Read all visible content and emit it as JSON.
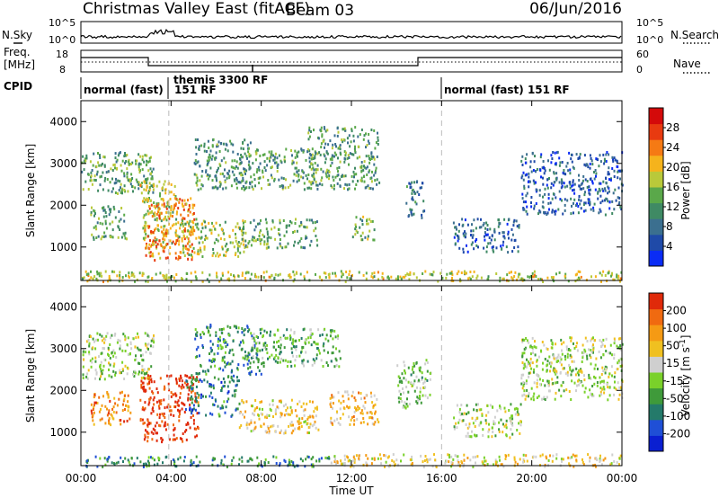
{
  "header": {
    "radar": "Christmas Valley East (fitACF)",
    "beam": "Beam 03",
    "date": "06/Jun/2016"
  },
  "summary_panels": {
    "nsky": {
      "label": "N.Sky",
      "ticks": [
        "10^5",
        "10^0"
      ]
    },
    "nsearch": {
      "label": "N.Search",
      "ticks": [
        "10^5",
        "10^0"
      ]
    },
    "freq": {
      "label_line1": "Freq.",
      "label_line2": "[MHz]",
      "ticks": [
        "18",
        "8"
      ]
    },
    "nave": {
      "label": "Nave",
      "ticks": [
        "60",
        "0"
      ]
    },
    "cpid": {
      "label": "CPID",
      "segments": [
        {
          "name": "normal (fast) 151 RF",
          "start_h": 0,
          "end_h": 3.9,
          "text_a": "normal (fast) ",
          "text_b": "151 RF"
        },
        {
          "name": "themis 3300 RF",
          "start_h": 3.9,
          "end_h": 16.0,
          "text": "themis 3300 RF"
        },
        {
          "name": "normal (fast) 151 RF",
          "start_h": 16.0,
          "end_h": 24.0,
          "text": "normal (fast) 151 RF"
        }
      ]
    }
  },
  "chart_data": [
    {
      "type": "heatmap",
      "title": "",
      "quantity": "Power",
      "ylabel": "Slant Range [km]",
      "xlabel": "",
      "xlim": [
        0,
        24
      ],
      "ylim": [
        200,
        4500
      ],
      "yticks": [
        "1000",
        "2000",
        "3000",
        "4000"
      ],
      "colorbar": {
        "label": "Power [dB]",
        "min": 0,
        "max": 32,
        "ticks": [
          "4",
          "8",
          "12",
          "16",
          "20",
          "24",
          "28"
        ],
        "colors": [
          "#0a2cf5",
          "#1f4aa8",
          "#3b6f8f",
          "#3f8a64",
          "#5aa84a",
          "#b9c93a",
          "#f5b31c",
          "#f57a14",
          "#e83a10",
          "#d40a0a"
        ]
      },
      "regions": [
        {
          "t0": 0.0,
          "t1": 3.2,
          "r0": 2300,
          "r1": 3300,
          "level": 0.42
        },
        {
          "t0": 0.4,
          "t1": 2.0,
          "r0": 1200,
          "r1": 2000,
          "level": 0.4
        },
        {
          "t0": 2.6,
          "t1": 4.2,
          "r0": 1000,
          "r1": 2600,
          "level": 0.55
        },
        {
          "t0": 2.8,
          "t1": 5.0,
          "r0": 700,
          "r1": 2200,
          "level": 0.74
        },
        {
          "t0": 4.3,
          "t1": 7.2,
          "r0": 800,
          "r1": 1700,
          "level": 0.52
        },
        {
          "t0": 5.0,
          "t1": 7.5,
          "r0": 2400,
          "r1": 3600,
          "level": 0.36
        },
        {
          "t0": 7.0,
          "t1": 10.5,
          "r0": 1000,
          "r1": 1700,
          "level": 0.42
        },
        {
          "t0": 7.0,
          "t1": 10.5,
          "r0": 2400,
          "r1": 3400,
          "level": 0.4
        },
        {
          "t0": 10.0,
          "t1": 13.2,
          "r0": 2400,
          "r1": 3900,
          "level": 0.38
        },
        {
          "t0": 12.0,
          "t1": 13.0,
          "r0": 1200,
          "r1": 1800,
          "level": 0.45
        },
        {
          "t0": 14.4,
          "t1": 15.2,
          "r0": 1700,
          "r1": 2600,
          "level": 0.28
        },
        {
          "t0": 16.5,
          "t1": 19.5,
          "r0": 900,
          "r1": 1700,
          "level": 0.22
        },
        {
          "t0": 19.5,
          "t1": 24.0,
          "r0": 1800,
          "r1": 3300,
          "level": 0.2
        },
        {
          "t0": 0.0,
          "t1": 24.0,
          "r0": 200,
          "r1": 450,
          "level": 0.55
        }
      ]
    },
    {
      "type": "heatmap",
      "title": "",
      "quantity": "Velocity",
      "ylabel": "Slant Range [km]",
      "xlabel": "Time UT",
      "xlim": [
        0,
        24
      ],
      "ylim": [
        200,
        4500
      ],
      "yticks": [
        "1000",
        "2000",
        "3000",
        "4000"
      ],
      "xticks": [
        "00:00",
        "04:00",
        "08:00",
        "12:00",
        "16:00",
        "20:00",
        "00:00"
      ],
      "colorbar": {
        "label": "Velocity [m s^-1]",
        "min": -250,
        "max": 250,
        "ticks": [
          "200",
          "100",
          "50",
          "15",
          "-15",
          "-50",
          "-100",
          "-200"
        ],
        "colors": [
          "#0a1fd1",
          "#1f4fd6",
          "#247a6a",
          "#3f9a3a",
          "#7ad12a",
          "#cfcfcf",
          "#f0c020",
          "#f59a14",
          "#f06a10",
          "#e02a0a"
        ]
      },
      "regions": [
        {
          "t0": 0.0,
          "t1": 3.2,
          "r0": 2300,
          "r1": 3400,
          "level": 0.5
        },
        {
          "t0": 0.4,
          "t1": 2.2,
          "r0": 1200,
          "r1": 2000,
          "level": 0.8
        },
        {
          "t0": 2.6,
          "t1": 5.2,
          "r0": 800,
          "r1": 2400,
          "level": 0.95
        },
        {
          "t0": 4.6,
          "t1": 7.0,
          "r0": 1400,
          "r1": 2400,
          "level": 0.25
        },
        {
          "t0": 5.0,
          "t1": 8.0,
          "r0": 2400,
          "r1": 3600,
          "level": 0.3
        },
        {
          "t0": 7.0,
          "t1": 10.5,
          "r0": 1000,
          "r1": 1800,
          "level": 0.62
        },
        {
          "t0": 7.5,
          "t1": 11.5,
          "r0": 2600,
          "r1": 3500,
          "level": 0.4
        },
        {
          "t0": 11.0,
          "t1": 13.2,
          "r0": 1200,
          "r1": 2000,
          "level": 0.68
        },
        {
          "t0": 14.0,
          "t1": 15.5,
          "r0": 1600,
          "r1": 2800,
          "level": 0.45
        },
        {
          "t0": 16.5,
          "t1": 19.5,
          "r0": 900,
          "r1": 1700,
          "level": 0.5
        },
        {
          "t0": 19.5,
          "t1": 24.0,
          "r0": 1800,
          "r1": 3300,
          "level": 0.5
        },
        {
          "t0": 0.0,
          "t1": 11.0,
          "r0": 200,
          "r1": 450,
          "level": 0.3
        },
        {
          "t0": 11.0,
          "t1": 24.0,
          "r0": 200,
          "r1": 500,
          "level": 0.62
        }
      ]
    }
  ]
}
